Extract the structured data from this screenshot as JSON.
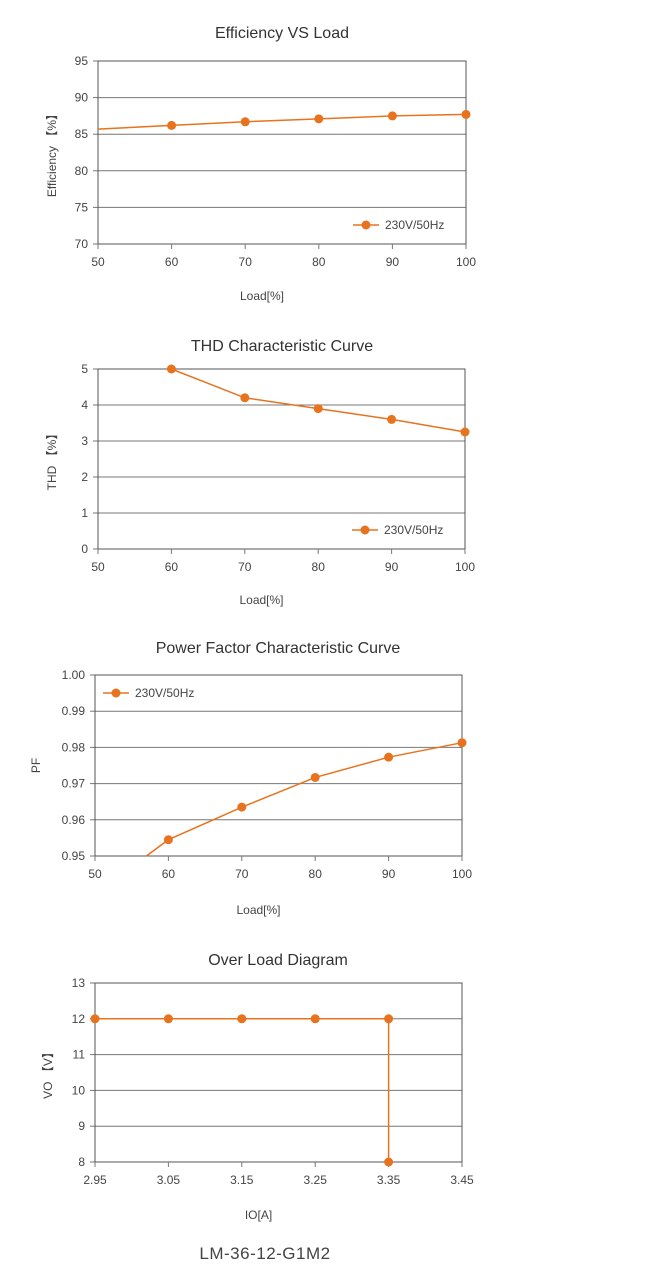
{
  "theme": {
    "series_color": "#e8731e",
    "grid_color": "#777777"
  },
  "chart_data": [
    {
      "type": "line",
      "title": "Efficiency VS Load",
      "xlabel": "Load[%]",
      "ylabel": "Efficiency 【%】",
      "xlim": [
        50,
        100
      ],
      "ylim": [
        70,
        95
      ],
      "xticks": [
        50,
        60,
        70,
        80,
        90,
        100
      ],
      "yticks": [
        70,
        75,
        80,
        85,
        90,
        95
      ],
      "grid": true,
      "legend_position": "bottom-right",
      "series": [
        {
          "name": "230V/50Hz",
          "x": [
            60,
            70,
            80,
            90,
            100
          ],
          "y": [
            86.2,
            86.7,
            87.1,
            87.5,
            87.7
          ],
          "line_extends_to_x": 50,
          "line_start_y": 85.7
        }
      ]
    },
    {
      "type": "line",
      "title": "THD Characteristic Curve",
      "xlabel": "Load[%]",
      "ylabel": "THD 【%】",
      "xlim": [
        50,
        100
      ],
      "ylim": [
        0,
        5
      ],
      "xticks": [
        50,
        60,
        70,
        80,
        90,
        100
      ],
      "yticks": [
        0,
        1,
        2,
        3,
        4,
        5
      ],
      "grid": true,
      "legend_position": "bottom-right",
      "series": [
        {
          "name": "230V/50Hz",
          "x": [
            60,
            70,
            80,
            90,
            100
          ],
          "y": [
            5.0,
            4.2,
            3.9,
            3.6,
            3.25
          ]
        }
      ]
    },
    {
      "type": "line",
      "title": "Power Factor Characteristic Curve",
      "xlabel": "Load[%]",
      "ylabel": "PF",
      "xlim": [
        50,
        100
      ],
      "ylim": [
        0.95,
        1.0
      ],
      "xticks": [
        50,
        60,
        70,
        80,
        90,
        100
      ],
      "yticks": [
        0.95,
        0.96,
        0.97,
        0.98,
        0.99,
        1.0
      ],
      "ytick_labels": [
        "0.95",
        "0.96",
        "0.97",
        "0.98",
        "0.99",
        "1.00"
      ],
      "grid": true,
      "legend_position": "top-left",
      "series": [
        {
          "name": "230V/50Hz",
          "x": [
            60,
            70,
            80,
            90,
            100
          ],
          "y": [
            0.9545,
            0.9635,
            0.9717,
            0.9773,
            0.9813
          ],
          "line_extends_to_x": 57,
          "line_start_y": 0.95
        }
      ]
    },
    {
      "type": "line",
      "title": "Over Load Diagram",
      "xlabel": "IO[A]",
      "ylabel": "VO 【V】",
      "xlim": [
        2.95,
        3.45
      ],
      "ylim": [
        8,
        13
      ],
      "xticks": [
        2.95,
        3.05,
        3.15,
        3.25,
        3.35,
        3.45
      ],
      "yticks": [
        8,
        9,
        10,
        11,
        12,
        13
      ],
      "grid": true,
      "series": [
        {
          "x": [
            2.95,
            3.05,
            3.15,
            3.25,
            3.35,
            3.35
          ],
          "y": [
            12,
            12,
            12,
            12,
            12,
            8
          ]
        }
      ]
    }
  ],
  "footer": {
    "model": "LM-36-12-G1M2"
  }
}
